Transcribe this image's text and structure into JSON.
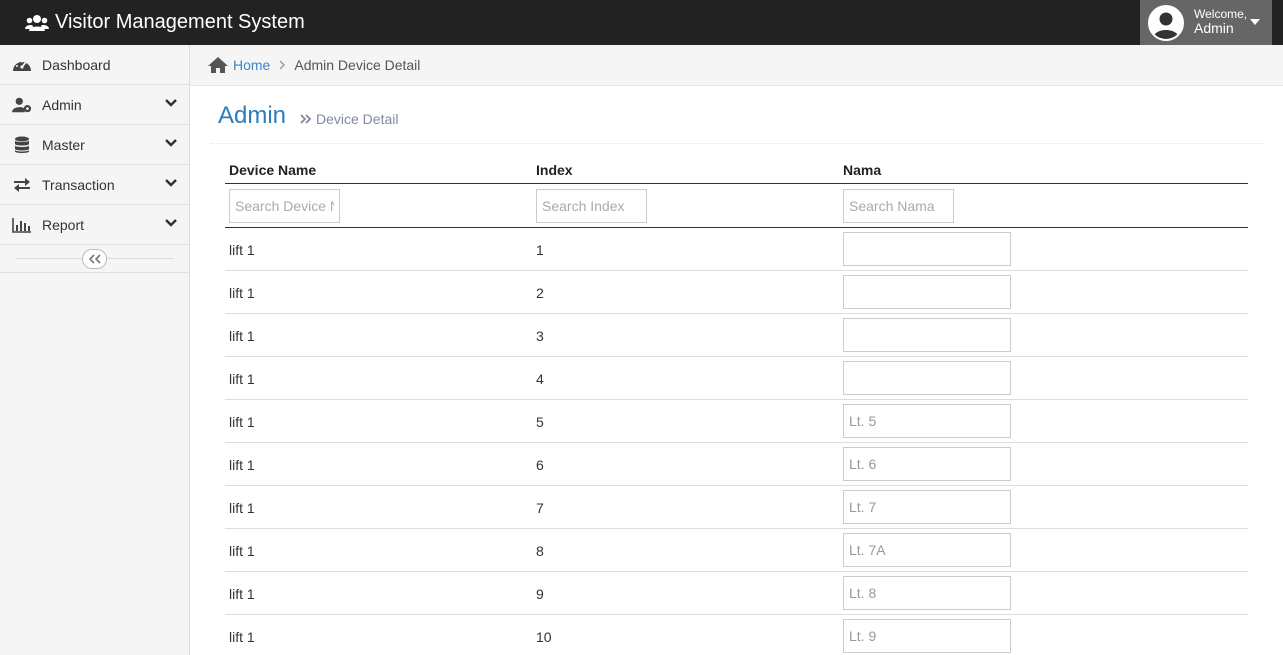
{
  "app": {
    "title": "Visitor Management System",
    "welcome": "Welcome,",
    "user": "Admin"
  },
  "sidebar": {
    "items": [
      {
        "label": "Dashboard",
        "icon": "dashboard-icon",
        "has_submenu": false
      },
      {
        "label": "Admin",
        "icon": "user-gear-icon",
        "has_submenu": true
      },
      {
        "label": "Master",
        "icon": "database-icon",
        "has_submenu": true
      },
      {
        "label": "Transaction",
        "icon": "exchange-icon",
        "has_submenu": true
      },
      {
        "label": "Report",
        "icon": "bar-chart-icon",
        "has_submenu": true
      }
    ]
  },
  "breadcrumb": {
    "home": "Home",
    "current": "Admin Device Detail"
  },
  "page": {
    "title": "Admin",
    "subtitle": "Device Detail"
  },
  "table": {
    "headers": [
      "Device Name",
      "Index",
      "Nama"
    ],
    "filters": {
      "device_name_placeholder": "Search Device Name",
      "index_placeholder": "Search Index",
      "nama_placeholder": "Search Nama"
    },
    "rows": [
      {
        "device": "lift 1",
        "index": "1",
        "nama": ""
      },
      {
        "device": "lift 1",
        "index": "2",
        "nama": ""
      },
      {
        "device": "lift 1",
        "index": "3",
        "nama": ""
      },
      {
        "device": "lift 1",
        "index": "4",
        "nama": ""
      },
      {
        "device": "lift 1",
        "index": "5",
        "nama": "Lt. 5"
      },
      {
        "device": "lift 1",
        "index": "6",
        "nama": "Lt. 6"
      },
      {
        "device": "lift 1",
        "index": "7",
        "nama": "Lt. 7"
      },
      {
        "device": "lift 1",
        "index": "8",
        "nama": "Lt. 7A"
      },
      {
        "device": "lift 1",
        "index": "9",
        "nama": "Lt. 8"
      },
      {
        "device": "lift 1",
        "index": "10",
        "nama": "Lt. 9"
      }
    ]
  }
}
